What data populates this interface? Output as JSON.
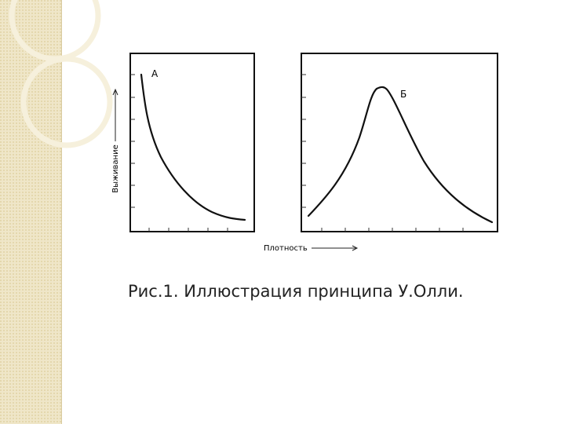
{
  "figure": {
    "panels": [
      {
        "label": "А"
      },
      {
        "label": "Б"
      }
    ],
    "y_axis_label": "Выживание",
    "x_axis_label": "Плотность"
  },
  "caption": "Рис.1. Иллюстрация принципа У.Олли."
}
